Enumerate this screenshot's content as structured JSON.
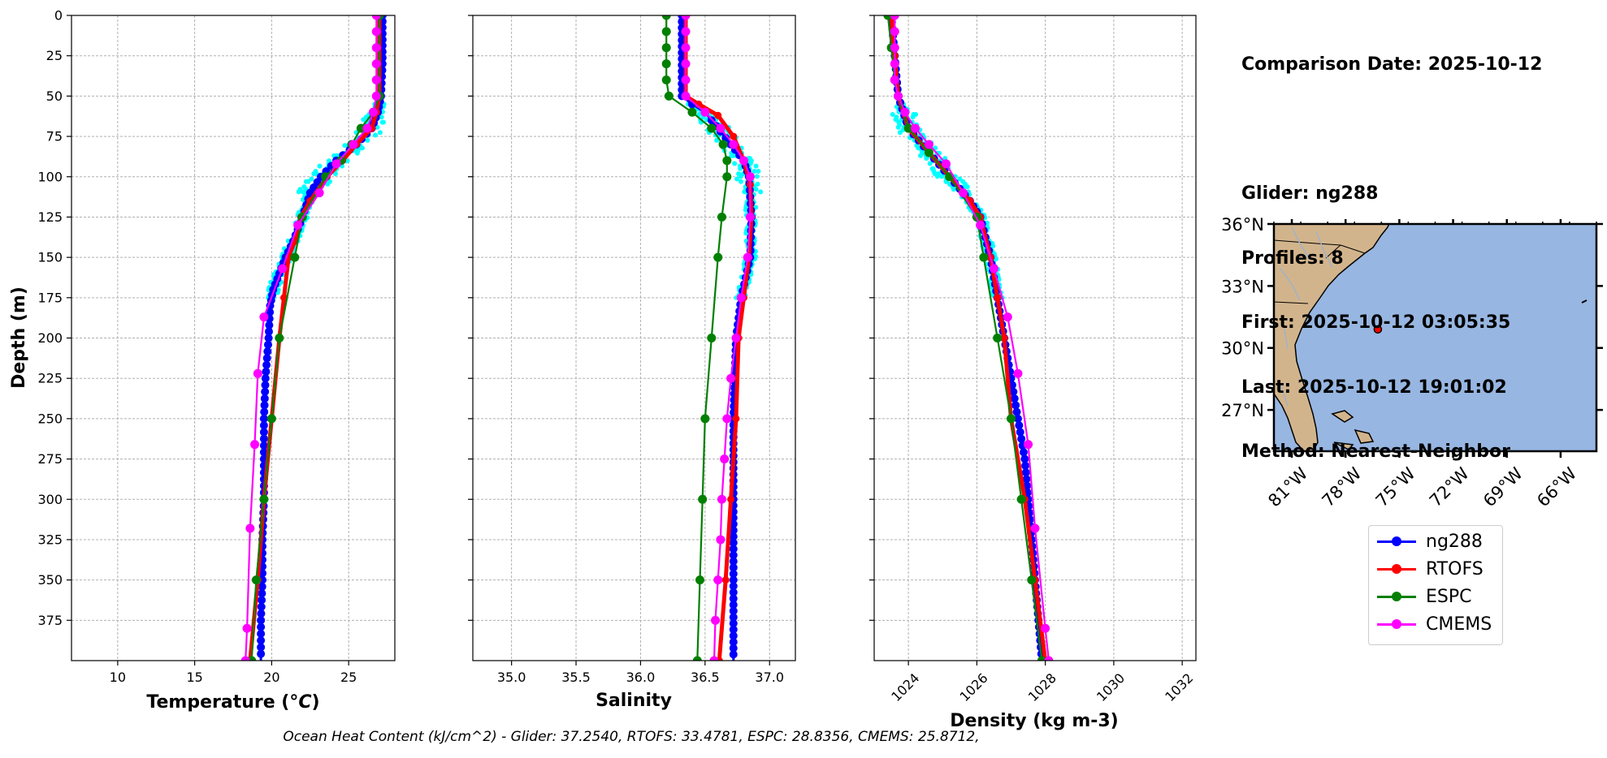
{
  "info": {
    "lines": [
      "Comparison Date: 2025-10-12",
      "",
      "Glider: ng288",
      "Profiles: 8",
      "First: 2025-10-12 03:05:35",
      "Last: 2025-10-12 19:01:02",
      "Method: Nearest-Neighbor"
    ]
  },
  "footnote": "Ocean Heat Content (kJ/cm^2) - Glider: 37.2540,  RTOFS: 33.4781,  ESPC: 28.8356,  CMEMS: 25.8712,",
  "colors": {
    "glider": "#0000ff",
    "rtofs": "#ff0000",
    "espc": "#008000",
    "cmems": "#ff00ff",
    "glider_raw": "#00ffff",
    "land": "#d2b48c",
    "ocean": "#97b6e1",
    "grid": "#b0b0b0"
  },
  "chart_data": [
    {
      "type": "line",
      "xlabel": "Temperature (°C)",
      "ylabel": "Depth (m)",
      "xlim": [
        7,
        28
      ],
      "ylim": [
        400,
        0
      ],
      "xticks": [
        10,
        15,
        20,
        25
      ],
      "yticks": [
        0,
        25,
        50,
        75,
        100,
        125,
        150,
        175,
        200,
        225,
        250,
        275,
        300,
        325,
        350,
        375
      ],
      "grid": true,
      "series": [
        {
          "name": "ng288",
          "color": "#0000ff",
          "points": [
            [
              27.2,
              0
            ],
            [
              27.2,
              30
            ],
            [
              27.1,
              50
            ],
            [
              26.9,
              60
            ],
            [
              26.5,
              70
            ],
            [
              25.5,
              80
            ],
            [
              24.2,
              90
            ],
            [
              23.2,
              100
            ],
            [
              22.5,
              110
            ],
            [
              22.0,
              125
            ],
            [
              21.4,
              140
            ],
            [
              20.9,
              150
            ],
            [
              20.5,
              160
            ],
            [
              20.1,
              170
            ],
            [
              19.9,
              180
            ],
            [
              19.8,
              200
            ],
            [
              19.6,
              225
            ],
            [
              19.5,
              250
            ],
            [
              19.5,
              275
            ],
            [
              19.5,
              300
            ],
            [
              19.4,
              325
            ],
            [
              19.4,
              350
            ],
            [
              19.3,
              375
            ],
            [
              19.3,
              400
            ]
          ]
        },
        {
          "name": "RTOFS",
          "color": "#ff0000",
          "points": [
            [
              27.0,
              0
            ],
            [
              27.0,
              50
            ],
            [
              26.8,
              60
            ],
            [
              26.5,
              70
            ],
            [
              25.5,
              80
            ],
            [
              24.6,
              90
            ],
            [
              23.6,
              100
            ],
            [
              22.5,
              115
            ],
            [
              21.9,
              125
            ],
            [
              21.5,
              140
            ],
            [
              21.1,
              150
            ],
            [
              20.8,
              175
            ],
            [
              20.5,
              200
            ],
            [
              20.0,
              250
            ],
            [
              19.5,
              300
            ],
            [
              19.1,
              350
            ],
            [
              18.6,
              400
            ]
          ]
        },
        {
          "name": "ESPC",
          "color": "#008000",
          "points": [
            [
              27.0,
              0
            ],
            [
              27.0,
              50
            ],
            [
              26.6,
              60
            ],
            [
              25.8,
              70
            ],
            [
              25.2,
              80
            ],
            [
              24.5,
              90
            ],
            [
              23.5,
              100
            ],
            [
              22.0,
              125
            ],
            [
              21.5,
              150
            ],
            [
              20.5,
              200
            ],
            [
              20.0,
              250
            ],
            [
              19.5,
              300
            ],
            [
              19.0,
              350
            ],
            [
              18.7,
              400
            ]
          ]
        },
        {
          "name": "CMEMS",
          "color": "#ff00ff",
          "points": [
            [
              26.8,
              0
            ],
            [
              26.8,
              10
            ],
            [
              26.8,
              20
            ],
            [
              26.8,
              30
            ],
            [
              26.8,
              40
            ],
            [
              26.8,
              50
            ],
            [
              26.6,
              60
            ],
            [
              26.2,
              70
            ],
            [
              25.3,
              80
            ],
            [
              24.2,
              92
            ],
            [
              23.1,
              110
            ],
            [
              21.7,
              130
            ],
            [
              20.7,
              157
            ],
            [
              19.5,
              187
            ],
            [
              19.1,
              222
            ],
            [
              18.9,
              266
            ],
            [
              18.6,
              318
            ],
            [
              18.4,
              380
            ],
            [
              18.3,
              400
            ]
          ]
        }
      ]
    },
    {
      "type": "line",
      "xlabel": "Salinity",
      "xlim": [
        34.7,
        37.2
      ],
      "ylim": [
        400,
        0
      ],
      "xticks": [
        35.0,
        35.5,
        36.0,
        36.5,
        37.0
      ],
      "grid": true,
      "series": [
        {
          "name": "ng288",
          "color": "#0000ff",
          "points": [
            [
              36.32,
              0
            ],
            [
              36.32,
              50
            ],
            [
              36.4,
              55
            ],
            [
              36.5,
              60
            ],
            [
              36.55,
              65
            ],
            [
              36.62,
              72
            ],
            [
              36.7,
              80
            ],
            [
              36.8,
              90
            ],
            [
              36.84,
              100
            ],
            [
              36.86,
              125
            ],
            [
              36.85,
              150
            ],
            [
              36.78,
              175
            ],
            [
              36.74,
              200
            ],
            [
              36.72,
              250
            ],
            [
              36.72,
              300
            ],
            [
              36.72,
              350
            ],
            [
              36.72,
              400
            ]
          ]
        },
        {
          "name": "RTOFS",
          "color": "#ff0000",
          "points": [
            [
              36.35,
              0
            ],
            [
              36.35,
              50
            ],
            [
              36.45,
              55
            ],
            [
              36.6,
              62
            ],
            [
              36.72,
              75
            ],
            [
              36.8,
              90
            ],
            [
              36.85,
              105
            ],
            [
              36.86,
              125
            ],
            [
              36.84,
              150
            ],
            [
              36.8,
              175
            ],
            [
              36.76,
              200
            ],
            [
              36.74,
              250
            ],
            [
              36.7,
              300
            ],
            [
              36.66,
              350
            ],
            [
              36.61,
              400
            ]
          ]
        },
        {
          "name": "ESPC",
          "color": "#008000",
          "points": [
            [
              36.2,
              0
            ],
            [
              36.2,
              10
            ],
            [
              36.2,
              20
            ],
            [
              36.2,
              30
            ],
            [
              36.2,
              40
            ],
            [
              36.22,
              50
            ],
            [
              36.4,
              60
            ],
            [
              36.55,
              70
            ],
            [
              36.64,
              80
            ],
            [
              36.67,
              90
            ],
            [
              36.67,
              100
            ],
            [
              36.63,
              125
            ],
            [
              36.6,
              150
            ],
            [
              36.55,
              200
            ],
            [
              36.5,
              250
            ],
            [
              36.48,
              300
            ],
            [
              36.46,
              350
            ],
            [
              36.44,
              400
            ]
          ]
        },
        {
          "name": "CMEMS",
          "color": "#ff00ff",
          "points": [
            [
              36.35,
              0
            ],
            [
              36.35,
              10
            ],
            [
              36.35,
              20
            ],
            [
              36.35,
              30
            ],
            [
              36.35,
              40
            ],
            [
              36.35,
              50
            ],
            [
              36.5,
              60
            ],
            [
              36.62,
              70
            ],
            [
              36.72,
              80
            ],
            [
              36.8,
              90
            ],
            [
              36.85,
              100
            ],
            [
              36.85,
              125
            ],
            [
              36.83,
              150
            ],
            [
              36.78,
              175
            ],
            [
              36.74,
              200
            ],
            [
              36.7,
              225
            ],
            [
              36.67,
              250
            ],
            [
              36.65,
              275
            ],
            [
              36.63,
              300
            ],
            [
              36.62,
              325
            ],
            [
              36.6,
              350
            ],
            [
              36.58,
              375
            ],
            [
              36.57,
              400
            ]
          ]
        }
      ]
    },
    {
      "type": "line",
      "xlabel": "Density (kg m-3)",
      "xlim": [
        1023.0,
        1032.4
      ],
      "ylim": [
        400,
        0
      ],
      "xticks": [
        1024,
        1026,
        1028,
        1030,
        1032
      ],
      "grid": true,
      "series": [
        {
          "name": "ng288",
          "color": "#0000ff",
          "points": [
            [
              1023.5,
              0
            ],
            [
              1023.6,
              25
            ],
            [
              1023.7,
              50
            ],
            [
              1024.0,
              70
            ],
            [
              1024.6,
              85
            ],
            [
              1025.2,
              100
            ],
            [
              1025.8,
              115
            ],
            [
              1026.1,
              125
            ],
            [
              1026.4,
              150
            ],
            [
              1026.6,
              175
            ],
            [
              1026.8,
              200
            ],
            [
              1027.0,
              225
            ],
            [
              1027.2,
              250
            ],
            [
              1027.4,
              275
            ],
            [
              1027.5,
              300
            ],
            [
              1027.6,
              325
            ],
            [
              1027.7,
              350
            ],
            [
              1027.8,
              375
            ],
            [
              1027.9,
              400
            ]
          ]
        },
        {
          "name": "RTOFS",
          "color": "#ff0000",
          "points": [
            [
              1023.5,
              0
            ],
            [
              1023.6,
              25
            ],
            [
              1023.7,
              50
            ],
            [
              1024.0,
              70
            ],
            [
              1024.6,
              85
            ],
            [
              1025.2,
              100
            ],
            [
              1025.8,
              115
            ],
            [
              1026.1,
              125
            ],
            [
              1026.4,
              150
            ],
            [
              1026.6,
              175
            ],
            [
              1026.8,
              200
            ],
            [
              1027.0,
              250
            ],
            [
              1027.4,
              300
            ],
            [
              1027.7,
              350
            ],
            [
              1028.0,
              400
            ]
          ]
        },
        {
          "name": "ESPC",
          "color": "#008000",
          "points": [
            [
              1023.4,
              0
            ],
            [
              1023.5,
              20
            ],
            [
              1023.6,
              40
            ],
            [
              1023.7,
              50
            ],
            [
              1024.0,
              70
            ],
            [
              1024.6,
              85
            ],
            [
              1025.2,
              100
            ],
            [
              1026.0,
              125
            ],
            [
              1026.2,
              150
            ],
            [
              1026.6,
              200
            ],
            [
              1027.0,
              250
            ],
            [
              1027.3,
              300
            ],
            [
              1027.6,
              350
            ],
            [
              1027.9,
              400
            ]
          ]
        },
        {
          "name": "CMEMS",
          "color": "#ff00ff",
          "points": [
            [
              1023.6,
              0
            ],
            [
              1023.6,
              10
            ],
            [
              1023.6,
              20
            ],
            [
              1023.6,
              30
            ],
            [
              1023.6,
              40
            ],
            [
              1023.7,
              50
            ],
            [
              1023.9,
              60
            ],
            [
              1024.2,
              70
            ],
            [
              1024.6,
              80
            ],
            [
              1025.1,
              92
            ],
            [
              1025.6,
              110
            ],
            [
              1026.1,
              130
            ],
            [
              1026.5,
              157
            ],
            [
              1026.9,
              187
            ],
            [
              1027.2,
              222
            ],
            [
              1027.5,
              266
            ],
            [
              1027.7,
              318
            ],
            [
              1028.0,
              380
            ],
            [
              1028.1,
              400
            ]
          ]
        }
      ]
    },
    {
      "type": "map",
      "lon_range": [
        -82,
        -64
      ],
      "lat_range": [
        25,
        36
      ],
      "xticks": [
        "81°W",
        "78°W",
        "75°W",
        "72°W",
        "69°W",
        "66°W"
      ],
      "yticks": [
        "36°N",
        "33°N",
        "30°N",
        "27°N"
      ],
      "glider_location": {
        "lon": -76.2,
        "lat": 30.9
      }
    }
  ],
  "legend": [
    {
      "label": "ng288",
      "color": "#0000ff"
    },
    {
      "label": "RTOFS",
      "color": "#ff0000"
    },
    {
      "label": "ESPC",
      "color": "#008000"
    },
    {
      "label": "CMEMS",
      "color": "#ff00ff"
    }
  ]
}
